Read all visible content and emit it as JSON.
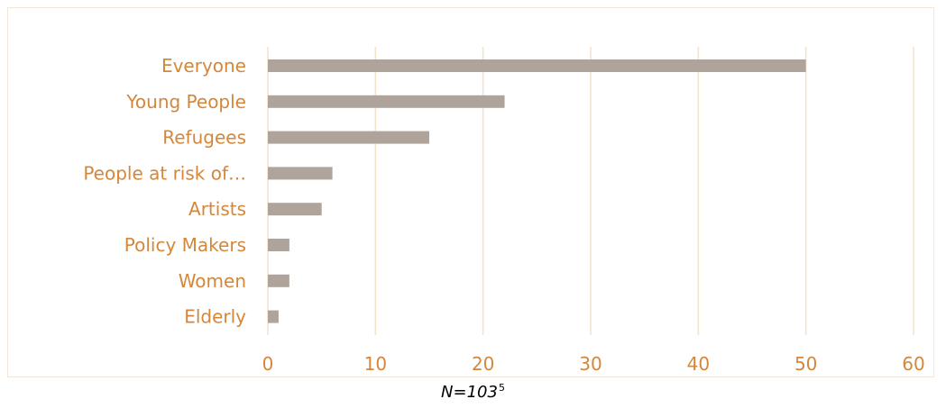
{
  "chart_data": {
    "type": "bar",
    "orientation": "horizontal",
    "categories": [
      "Everyone",
      "Young People",
      "Refugees",
      "People at risk of…",
      "Artists",
      "Policy Makers",
      "Women",
      "Elderly"
    ],
    "values": [
      50,
      22,
      15,
      6,
      5,
      2,
      2,
      1
    ],
    "title": "",
    "xlabel": "",
    "ylabel": "",
    "xlim": [
      0,
      60
    ],
    "x_ticks": [
      0,
      10,
      20,
      30,
      40,
      50,
      60
    ],
    "grid": true,
    "bar_color": "#aea49b",
    "label_color": "#d4873a",
    "grid_color": "#f3e2cc"
  },
  "footnote": {
    "text": "N=103",
    "superscript": "5"
  }
}
